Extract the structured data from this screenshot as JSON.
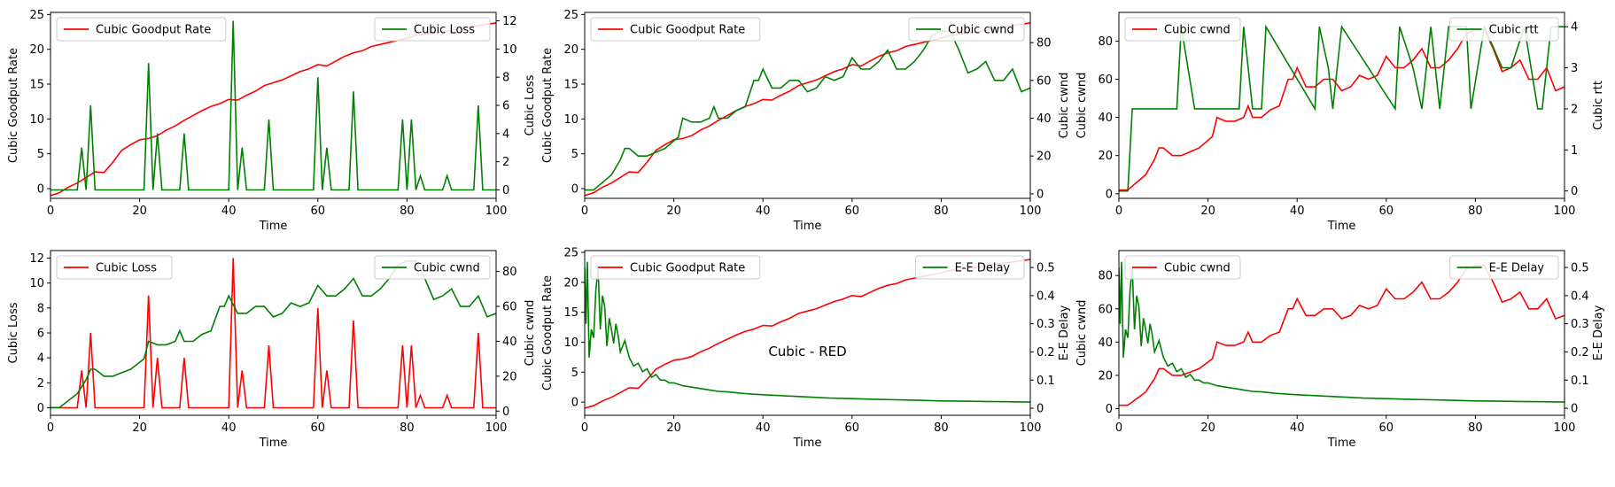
{
  "figure": {
    "suptitle": "Cubic - RED",
    "colors": {
      "red": "#ff0000",
      "green": "#008000"
    }
  },
  "chart_data": [
    {
      "type": "line",
      "xlabel": "Time",
      "xlim": [
        0,
        100
      ],
      "xticks": [
        0,
        20,
        40,
        60,
        80,
        100
      ],
      "left": {
        "label": "Cubic Goodput Rate",
        "lim": [
          -1.4,
          25.3
        ],
        "ticks": [
          0,
          5,
          10,
          15,
          20,
          25
        ],
        "color": "red",
        "legend": "upper-left",
        "series_name": "Cubic Goodput Rate",
        "x": [
          0,
          2,
          4,
          6,
          8,
          10,
          12,
          14,
          16,
          18,
          20,
          22,
          24,
          26,
          28,
          30,
          32,
          34,
          36,
          38,
          40,
          42,
          44,
          46,
          48,
          50,
          52,
          54,
          56,
          58,
          60,
          62,
          64,
          66,
          68,
          70,
          72,
          74,
          76,
          78,
          80,
          82,
          84,
          86,
          88,
          90,
          92,
          94,
          96,
          98,
          100
        ],
        "y": [
          -1.0,
          -0.6,
          0.2,
          0.8,
          1.6,
          2.4,
          2.3,
          3.8,
          5.5,
          6.3,
          7.0,
          7.2,
          7.6,
          8.4,
          9.0,
          9.8,
          10.5,
          11.2,
          11.8,
          12.2,
          12.8,
          12.7,
          13.4,
          14.0,
          14.8,
          15.2,
          15.6,
          16.2,
          16.8,
          17.2,
          17.8,
          17.6,
          18.3,
          19.0,
          19.5,
          19.8,
          20.4,
          20.7,
          21.0,
          21.3,
          21.6,
          22.0,
          22.2,
          22.3,
          22.5,
          22.7,
          23.0,
          23.2,
          23.4,
          23.6,
          23.8
        ]
      },
      "right": {
        "label": "Cubic Loss",
        "lim": [
          -0.6,
          12.6
        ],
        "ticks": [
          0,
          2,
          4,
          6,
          8,
          10,
          12
        ],
        "color": "green",
        "legend": "upper-right",
        "series_name": "Cubic Loss",
        "spikes": [
          [
            7,
            3
          ],
          [
            9,
            6
          ],
          [
            22,
            9
          ],
          [
            24,
            4
          ],
          [
            30,
            4
          ],
          [
            41,
            12
          ],
          [
            43,
            3
          ],
          [
            49,
            5
          ],
          [
            60,
            8
          ],
          [
            62,
            3
          ],
          [
            68,
            7
          ],
          [
            79,
            5
          ],
          [
            81,
            5
          ],
          [
            83,
            1
          ],
          [
            89,
            1
          ],
          [
            96,
            6
          ]
        ]
      }
    },
    {
      "type": "line",
      "xlabel": "Time",
      "xlim": [
        0,
        100
      ],
      "xticks": [
        0,
        20,
        40,
        60,
        80,
        100
      ],
      "left": {
        "label": "Cubic Goodput Rate",
        "lim": [
          -1.4,
          25.3
        ],
        "ticks": [
          0,
          5,
          10,
          15,
          20,
          25
        ],
        "color": "red",
        "legend": "upper-left",
        "series_name": "Cubic Goodput Rate",
        "same_as_panel": 0
      },
      "right": {
        "label": "Cubic cwnd",
        "lim": [
          -2.4,
          96.0
        ],
        "ticks": [
          0,
          20,
          40,
          60,
          80
        ],
        "color": "green",
        "legend": "upper-right",
        "series_name": "Cubic cwnd",
        "x": [
          0,
          2,
          3,
          4,
          5,
          6,
          7,
          8,
          9,
          10,
          12,
          14,
          16,
          18,
          20,
          21,
          22,
          24,
          26,
          28,
          29,
          30,
          32,
          34,
          36,
          38,
          39,
          40,
          42,
          44,
          46,
          48,
          50,
          52,
          54,
          56,
          58,
          60,
          62,
          64,
          66,
          68,
          70,
          72,
          74,
          76,
          78,
          80,
          82,
          84,
          86,
          88,
          90,
          92,
          94,
          96,
          98,
          100
        ],
        "y": [
          2,
          2,
          4,
          6,
          8,
          10,
          14,
          18,
          24,
          24,
          20,
          20,
          22,
          24,
          28,
          30,
          40,
          38,
          38,
          40,
          46,
          40,
          40,
          44,
          46,
          60,
          60,
          66,
          56,
          56,
          60,
          60,
          54,
          56,
          62,
          60,
          62,
          72,
          66,
          66,
          70,
          76,
          66,
          66,
          70,
          76,
          84,
          86,
          86,
          76,
          64,
          66,
          70,
          60,
          60,
          66,
          54,
          56
        ]
      }
    },
    {
      "type": "line",
      "xlabel": "Time",
      "xlim": [
        0,
        100
      ],
      "xticks": [
        0,
        20,
        40,
        60,
        80,
        100
      ],
      "left": {
        "label": "Cubic cwnd",
        "lim": [
          -2.4,
          95.0
        ],
        "ticks": [
          0,
          20,
          40,
          60,
          80
        ],
        "color": "red",
        "legend": "upper-left",
        "series_name": "Cubic cwnd",
        "same_as_panel": 1
      },
      "right": {
        "label": "Cubic rtt",
        "lim": [
          -0.18,
          4.35
        ],
        "ticks": [
          0,
          1,
          2,
          3,
          4
        ],
        "color": "green",
        "legend": "upper-right",
        "series_name": "Cubic rtt",
        "x": [
          0,
          2,
          3,
          13,
          14,
          17,
          27,
          28,
          29,
          30,
          32,
          33,
          44,
          45,
          47,
          48,
          50,
          62,
          63,
          66,
          68,
          70,
          72,
          74,
          78,
          79,
          82,
          86,
          88,
          91,
          94,
          95,
          97,
          98,
          100
        ],
        "y": [
          0,
          0,
          2,
          2,
          4,
          2,
          2,
          4,
          3,
          2,
          2,
          4,
          2,
          4,
          3,
          2,
          4,
          2,
          4,
          3,
          2,
          4,
          2,
          4,
          4,
          2,
          4,
          3,
          3,
          4,
          2,
          2,
          4,
          4,
          4
        ]
      }
    },
    {
      "type": "line",
      "xlabel": "Time",
      "xlim": [
        0,
        100
      ],
      "xticks": [
        0,
        20,
        40,
        60,
        80,
        100
      ],
      "left": {
        "label": "Cubic Loss",
        "lim": [
          -0.6,
          12.6
        ],
        "ticks": [
          0,
          2,
          4,
          6,
          8,
          10,
          12
        ],
        "color": "red",
        "legend": "upper-left",
        "series_name": "Cubic Loss",
        "same_as_panel": 0
      },
      "right": {
        "label": "Cubic cwnd",
        "lim": [
          -2.4,
          92.0
        ],
        "ticks": [
          0,
          20,
          40,
          60,
          80
        ],
        "color": "green",
        "legend": "upper-right",
        "series_name": "Cubic cwnd",
        "same_as_panel": 1
      }
    },
    {
      "type": "line",
      "xlabel": "Time",
      "xlim": [
        0,
        100
      ],
      "xticks": [
        0,
        20,
        40,
        60,
        80,
        100
      ],
      "left": {
        "label": "Cubic Goodput Rate",
        "lim": [
          -2.2,
          25.3
        ],
        "ticks": [
          0,
          5,
          10,
          15,
          20,
          25
        ],
        "color": "red",
        "legend": "upper-left",
        "series_name": "Cubic Goodput Rate",
        "same_as_panel": 0
      },
      "right": {
        "label": "E-E Delay",
        "lim": [
          -0.025,
          0.56
        ],
        "ticks": [
          0.0,
          0.1,
          0.2,
          0.3,
          0.4,
          0.5
        ],
        "color": "green",
        "legend": "upper-right",
        "series_name": "E-E Delay",
        "x": [
          0,
          0.3,
          0.6,
          1,
          1.5,
          2,
          2.5,
          3,
          3.5,
          4,
          4.5,
          5,
          5.5,
          6,
          6.5,
          7,
          7.5,
          8,
          9,
          10,
          11,
          12,
          13,
          14,
          15,
          16,
          17,
          18,
          19,
          20,
          22,
          24,
          26,
          28,
          30,
          32,
          34,
          36,
          38,
          40,
          45,
          50,
          55,
          60,
          65,
          70,
          75,
          80,
          85,
          90,
          95,
          100
        ],
        "y": [
          0.5,
          0.3,
          0.52,
          0.18,
          0.28,
          0.25,
          0.42,
          0.5,
          0.28,
          0.4,
          0.36,
          0.22,
          0.32,
          0.28,
          0.23,
          0.3,
          0.26,
          0.2,
          0.24,
          0.18,
          0.15,
          0.16,
          0.13,
          0.14,
          0.11,
          0.12,
          0.1,
          0.1,
          0.09,
          0.09,
          0.08,
          0.075,
          0.07,
          0.065,
          0.06,
          0.058,
          0.055,
          0.052,
          0.05,
          0.048,
          0.044,
          0.04,
          0.036,
          0.034,
          0.032,
          0.03,
          0.028,
          0.026,
          0.025,
          0.024,
          0.023,
          0.022
        ]
      }
    },
    {
      "type": "line",
      "xlabel": "Time",
      "xlim": [
        0,
        100
      ],
      "xticks": [
        0,
        20,
        40,
        60,
        80,
        100
      ],
      "left": {
        "label": "Cubic cwnd",
        "lim": [
          -4.0,
          95.0
        ],
        "ticks": [
          0,
          20,
          40,
          60,
          80
        ],
        "color": "red",
        "legend": "upper-left",
        "series_name": "Cubic cwnd",
        "same_as_panel": 1
      },
      "right": {
        "label": "E-E Delay",
        "lim": [
          -0.025,
          0.56
        ],
        "ticks": [
          0.0,
          0.1,
          0.2,
          0.3,
          0.4,
          0.5
        ],
        "color": "green",
        "legend": "upper-right",
        "series_name": "E-E Delay",
        "same_as_panel": 4
      }
    }
  ]
}
